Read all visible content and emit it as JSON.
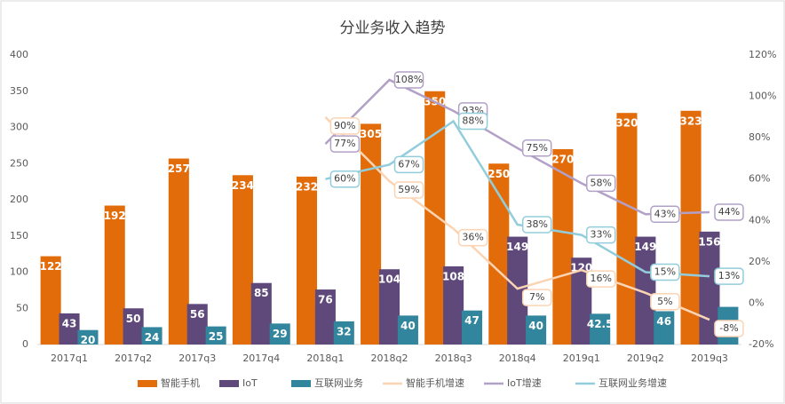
{
  "chart_data": {
    "type": "bar",
    "title": "分业务收入趋势",
    "categories": [
      "2017q1",
      "2017q2",
      "2017q3",
      "2017q4",
      "2018q1",
      "2018q2",
      "2018q3",
      "2018q4",
      "2019q1",
      "2019q2",
      "2019q3"
    ],
    "ylim": [
      0,
      400
    ],
    "yticks": [
      0,
      50,
      100,
      150,
      200,
      250,
      300,
      350,
      400
    ],
    "y2lim": [
      -20,
      120
    ],
    "y2ticks": [
      {
        "value": -20,
        "label": "-20%"
      },
      {
        "value": 0,
        "label": "0%"
      },
      {
        "value": 20,
        "label": "20%"
      },
      {
        "value": 40,
        "label": "40%"
      },
      {
        "value": 60,
        "label": "60%"
      },
      {
        "value": 80,
        "label": "80%"
      },
      {
        "value": 100,
        "label": "100%"
      },
      {
        "value": 120,
        "label": "120%"
      }
    ],
    "legend": "bottom",
    "series": [
      {
        "name": "智能手机",
        "type": "bar",
        "color": "#e36c0a",
        "values": [
          122,
          192,
          257,
          234,
          232,
          305,
          350,
          250,
          270,
          320,
          323
        ]
      },
      {
        "name": "IoT",
        "type": "bar",
        "color": "#5f497a",
        "values": [
          43,
          50,
          56,
          85,
          76,
          104,
          108,
          149,
          120,
          149,
          156
        ]
      },
      {
        "name": "互联网业务",
        "type": "bar",
        "color": "#31859c",
        "values": [
          20,
          24,
          25,
          29,
          32,
          40,
          47,
          40,
          42.5,
          46,
          52
        ],
        "value_labels": [
          "20",
          "24",
          "25",
          "29",
          "32",
          "40",
          "47",
          "40",
          "42.5",
          "46",
          null
        ]
      },
      {
        "name": "智能手机增速",
        "type": "line",
        "axis": "y2",
        "color": "#fbd4b4",
        "values": [
          null,
          null,
          null,
          null,
          90,
          59,
          36,
          7,
          16,
          5,
          -8
        ],
        "value_labels": [
          null,
          null,
          null,
          null,
          "90%",
          "59%",
          "36%",
          "7%",
          "16%",
          "5%",
          "-8%"
        ]
      },
      {
        "name": "IoT增速",
        "type": "line",
        "axis": "y2",
        "color": "#b2a1c7",
        "values": [
          null,
          null,
          null,
          null,
          77,
          108,
          93,
          75,
          58,
          43,
          44
        ],
        "value_labels": [
          null,
          null,
          null,
          null,
          "77%",
          "108%",
          "93%",
          "75%",
          "58%",
          "43%",
          "44%"
        ]
      },
      {
        "name": "互联网业务增速",
        "type": "line",
        "axis": "y2",
        "color": "#92cddc",
        "values": [
          null,
          null,
          null,
          null,
          60,
          67,
          88,
          38,
          33,
          15,
          13
        ],
        "value_labels": [
          null,
          null,
          null,
          null,
          "60%",
          "67%",
          "88%",
          "38%",
          "33%",
          "15%",
          "13%"
        ]
      }
    ]
  }
}
